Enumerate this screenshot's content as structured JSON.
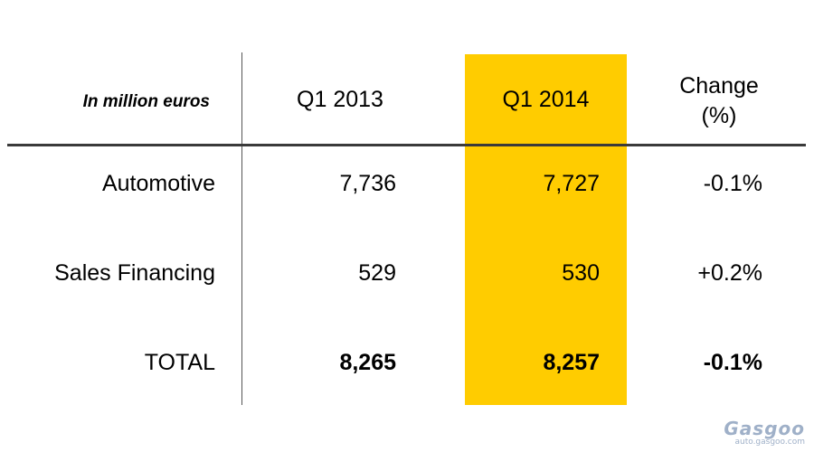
{
  "table": {
    "unit_label": "In million euros",
    "columns": {
      "q1_2013": "Q1 2013",
      "q1_2014": "Q1 2014",
      "change_line1": "Change",
      "change_line2": "(%)"
    },
    "rows": [
      {
        "label": "Automotive",
        "q1_2013": "7,736",
        "q1_2014": "7,727",
        "change": "-0.1%"
      },
      {
        "label": "Sales Financing",
        "q1_2013": "529",
        "q1_2014": "530",
        "change": "+0.2%"
      },
      {
        "label": "TOTAL",
        "q1_2013": "8,265",
        "q1_2014": "8,257",
        "change": "-0.1%"
      }
    ],
    "highlight_color": "#FFCC00"
  },
  "watermark": {
    "logo": "Gasgoo",
    "url": "auto.gasgoo.com"
  }
}
